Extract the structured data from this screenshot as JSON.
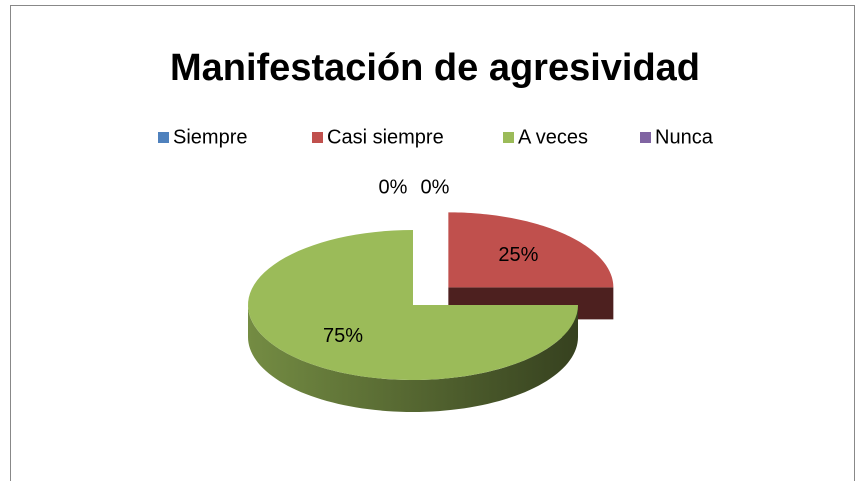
{
  "chart_data": {
    "type": "pie",
    "title": "Manifestación de agresividad",
    "categories": [
      "Siempre",
      "Casi  siempre",
      "A veces",
      "Nunca"
    ],
    "values": [
      0,
      25,
      75,
      0
    ],
    "value_labels": [
      "0%",
      "25%",
      "75%",
      "0%"
    ],
    "colors": [
      "#4f81bd",
      "#c0504d",
      "#9bbb59",
      "#8064a2"
    ],
    "legend": "top"
  }
}
